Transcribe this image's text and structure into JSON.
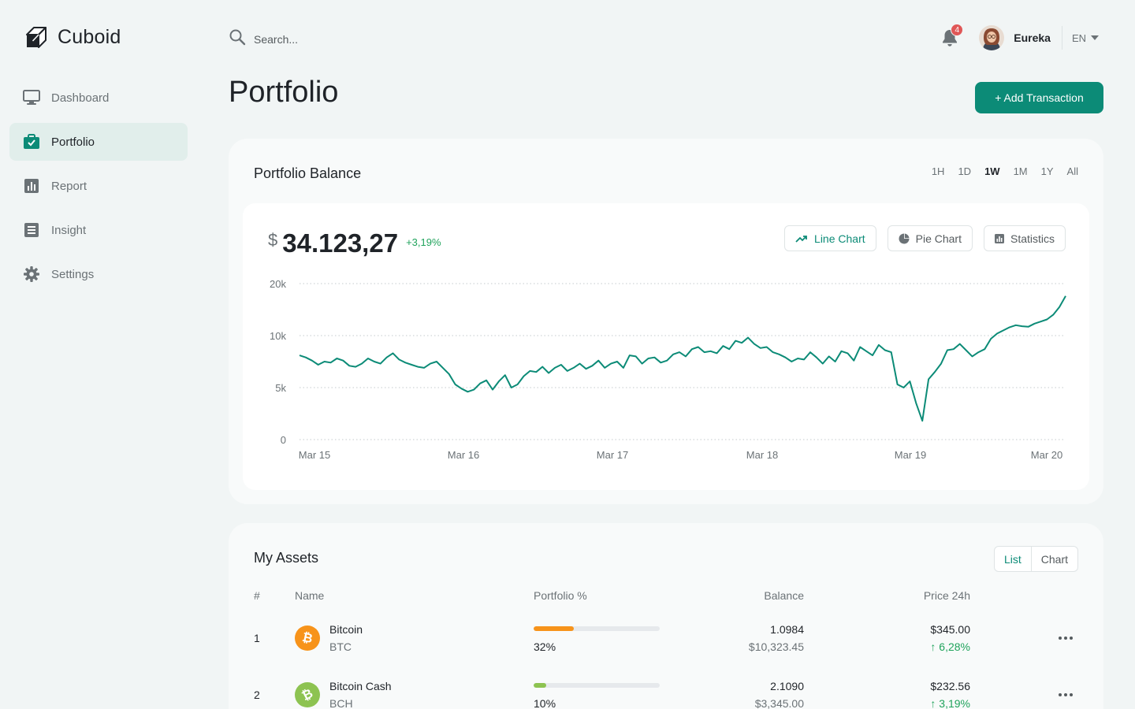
{
  "app": {
    "name": "Cuboid"
  },
  "sidebar": {
    "items": [
      {
        "label": "Dashboard",
        "icon": "monitor-icon",
        "active": false
      },
      {
        "label": "Portfolio",
        "icon": "briefcase-check-icon",
        "active": true
      },
      {
        "label": "Report",
        "icon": "bar-chart-icon",
        "active": false
      },
      {
        "label": "Insight",
        "icon": "list-icon",
        "active": false
      },
      {
        "label": "Settings",
        "icon": "gear-icon",
        "active": false
      }
    ]
  },
  "topbar": {
    "search_placeholder": "Search...",
    "notification_count": "4",
    "user_name": "Eureka",
    "language": "EN"
  },
  "page": {
    "title": "Portfolio",
    "add_button": "+ Add Transaction"
  },
  "balance": {
    "title": "Portfolio Balance",
    "ranges": [
      "1H",
      "1D",
      "1W",
      "1M",
      "1Y",
      "All"
    ],
    "selected_range": "1W",
    "currency": "$",
    "amount": "34.123,27",
    "change": "+3,19%",
    "buttons": {
      "line": "Line Chart",
      "pie": "Pie Chart",
      "stats": "Statistics"
    }
  },
  "chart_data": {
    "type": "line",
    "y_ticks": [
      "20k",
      "10k",
      "5k",
      "0"
    ],
    "x_ticks": [
      "Mar 15",
      "Mar 16",
      "Mar 17",
      "Mar 18",
      "Mar 19",
      "Mar 20"
    ],
    "grid": true,
    "series": [
      {
        "color": "#0c8b77",
        "values": [
          8100,
          7900,
          7600,
          7200,
          7500,
          7400,
          7800,
          7600,
          7100,
          7000,
          7300,
          7800,
          7500,
          7300,
          7900,
          8300,
          7700,
          7400,
          7200,
          7000,
          6900,
          7300,
          7500,
          6900,
          6300,
          5300,
          4900,
          4600,
          4800,
          5400,
          5700,
          4800,
          5600,
          6200,
          5000,
          5300,
          6100,
          6600,
          6500,
          7000,
          6400,
          6900,
          7200,
          6600,
          6900,
          7300,
          6800,
          7100,
          7600,
          6900,
          7300,
          7500,
          6900,
          8100,
          8000,
          7300,
          7800,
          7900,
          7400,
          7600,
          8200,
          8400,
          8000,
          8700,
          8900,
          8400,
          8500,
          8300,
          9000,
          8700,
          9500,
          9300,
          9800,
          9200,
          8800,
          8900,
          8400,
          8200,
          7900,
          7500,
          7800,
          7700,
          8400,
          7900,
          7300,
          8000,
          7500,
          8500,
          8300,
          7600,
          8900,
          8500,
          8100,
          9100,
          8600,
          8400,
          5300,
          5000,
          5600,
          3500,
          1800,
          5800,
          6500,
          7300,
          8600,
          8700,
          9200,
          8600,
          8000,
          8400,
          8700,
          9700,
          10400,
          11000,
          11600,
          12000,
          11800,
          11700,
          12300,
          12700,
          13100,
          14000,
          15500,
          17600
        ]
      }
    ]
  },
  "assets": {
    "title": "My Assets",
    "views": [
      "List",
      "Chart"
    ],
    "selected_view": "List",
    "columns": [
      "#",
      "Name",
      "Portfolio %",
      "Balance",
      "Price 24h"
    ],
    "rows": [
      {
        "rank": "1",
        "name": "Bitcoin",
        "symbol": "BTC",
        "icon": "bitcoin-icon",
        "color": "#f7931a",
        "portfolio_pct": "32%",
        "portfolio_fraction": 0.32,
        "balance": "1.0984",
        "balance_usd": "$10,323.45",
        "price": "$345.00",
        "price_change": "6,28%"
      },
      {
        "rank": "2",
        "name": "Bitcoin Cash",
        "symbol": "BCH",
        "icon": "bitcoin-cash-icon",
        "color": "#8dc351",
        "portfolio_pct": "10%",
        "portfolio_fraction": 0.1,
        "balance": "2.1090",
        "balance_usd": "$3,345.00",
        "price": "$232.56",
        "price_change": "3,19%"
      }
    ]
  }
}
